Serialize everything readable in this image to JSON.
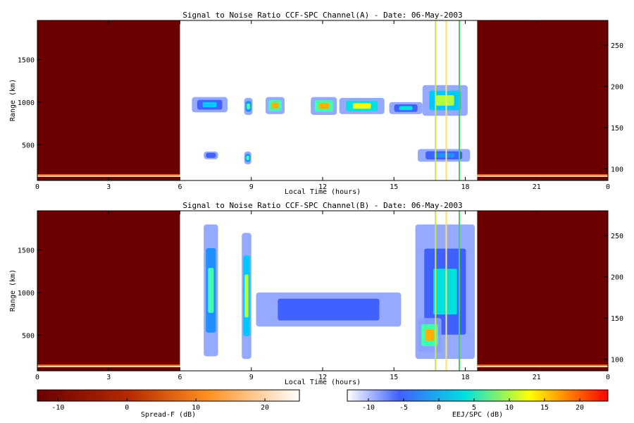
{
  "chart_data": [
    {
      "type": "heatmap",
      "title": "Signal to Noise Ratio CCF-SPC Channel(A) - Date: 06-May-2003",
      "xlabel": "Local Time (hours)",
      "ylabel": "Range (km)",
      "xlim": [
        0,
        24
      ],
      "ylim": [
        80,
        1960
      ],
      "y2lim": [
        86,
        280
      ],
      "xticks": [
        "0",
        "3",
        "6",
        "9",
        "12",
        "15",
        "18",
        "21",
        "0"
      ],
      "yticks": [
        "500",
        "1000",
        "1500"
      ],
      "y2ticks": [
        "100",
        "150",
        "200",
        "250"
      ],
      "vertical_lines": [
        {
          "x": 16.75,
          "color": "#c8e650"
        },
        {
          "x": 17.2,
          "color": "#ffe25a"
        },
        {
          "x": 17.75,
          "color": "#40d060"
        }
      ],
      "spread_f_regions": [
        [
          0,
          6
        ],
        [
          18.5,
          24
        ]
      ],
      "echo_regions": [
        {
          "t0": 6.5,
          "t1": 8.0,
          "r0": 880,
          "r1": 1060,
          "level": 4
        },
        {
          "t0": 8.7,
          "t1": 9.05,
          "r0": 850,
          "r1": 1050,
          "level": 6
        },
        {
          "t0": 9.6,
          "t1": 10.4,
          "r0": 860,
          "r1": 1060,
          "level": 9
        },
        {
          "t0": 11.5,
          "t1": 12.6,
          "r0": 850,
          "r1": 1060,
          "level": 9
        },
        {
          "t0": 12.7,
          "t1": 14.6,
          "r0": 860,
          "r1": 1050,
          "level": 8
        },
        {
          "t0": 14.8,
          "t1": 16.2,
          "r0": 860,
          "r1": 1000,
          "level": 5
        },
        {
          "t0": 16.2,
          "t1": 18.1,
          "r0": 840,
          "r1": 1200,
          "level": 7
        },
        {
          "t0": 7.0,
          "t1": 7.6,
          "r0": 330,
          "r1": 420,
          "level": 2
        },
        {
          "t0": 8.7,
          "t1": 9.0,
          "r0": 270,
          "r1": 420,
          "level": 6
        },
        {
          "t0": 16.0,
          "t1": 18.2,
          "r0": 300,
          "r1": 450,
          "level": 3
        }
      ]
    },
    {
      "type": "heatmap",
      "title": "Signal to Noise Ratio CCF-SPC Channel(B) - Date: 06-May-2003",
      "xlabel": "Local Time (hours)",
      "ylabel": "Range (km)",
      "xlim": [
        0,
        24
      ],
      "ylim": [
        80,
        1960
      ],
      "y2lim": [
        86,
        280
      ],
      "xticks": [
        "0",
        "3",
        "6",
        "9",
        "12",
        "15",
        "18",
        "21",
        "0"
      ],
      "yticks": [
        "500",
        "1000",
        "1500"
      ],
      "y2ticks": [
        "100",
        "150",
        "200",
        "250"
      ],
      "vertical_lines": [
        {
          "x": 16.75,
          "color": "#c8e650"
        },
        {
          "x": 17.2,
          "color": "#ffe25a"
        },
        {
          "x": 17.75,
          "color": "#40d060"
        }
      ],
      "spread_f_regions": [
        [
          0,
          6
        ],
        [
          18.5,
          24
        ]
      ],
      "echo_regions": [
        {
          "t0": 7.0,
          "t1": 7.6,
          "r0": 250,
          "r1": 1800,
          "level": 6
        },
        {
          "t0": 8.6,
          "t1": 9.0,
          "r0": 220,
          "r1": 1700,
          "level": 7
        },
        {
          "t0": 9.2,
          "t1": 15.3,
          "r0": 600,
          "r1": 1000,
          "level": 2
        },
        {
          "t0": 15.9,
          "t1": 18.4,
          "r0": 220,
          "r1": 1800,
          "level": 5
        },
        {
          "t0": 16.0,
          "t1": 17.0,
          "r0": 300,
          "r1": 700,
          "level": 9
        }
      ]
    },
    {
      "type": "colorbar",
      "label": "Spread-F (dB)",
      "range": [
        -13,
        25
      ],
      "ticks": [
        "-10",
        "0",
        "10",
        "20"
      ],
      "colors": [
        "#6b0000",
        "#ff9020",
        "#ffffff"
      ]
    },
    {
      "type": "colorbar",
      "label": "EEJ/SPC (dB)",
      "range": [
        -13,
        24
      ],
      "ticks": [
        "-10",
        "-5",
        "0",
        "5",
        "10",
        "15",
        "20"
      ],
      "colors": [
        "#ffffff",
        "#4060ff",
        "#00e0e0",
        "#ffff00",
        "#ff0000"
      ]
    }
  ]
}
